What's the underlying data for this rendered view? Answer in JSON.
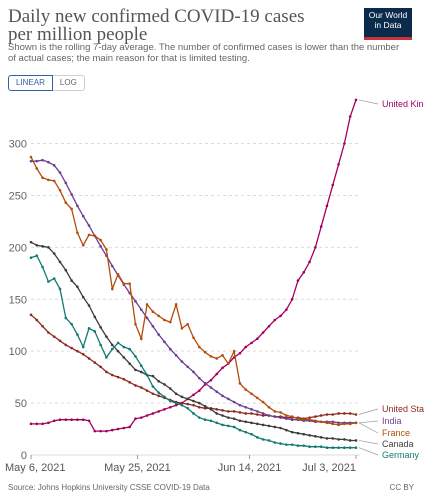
{
  "header": {
    "title": "Daily new confirmed COVID-19 cases per million people",
    "subtitle": "Shown is the rolling 7-day average. The number of confirmed cases is lower than the number of actual cases; the main reason for that is limited testing.",
    "logo_line1": "Our World",
    "logo_line2": "in Data"
  },
  "scale_toggle": {
    "linear": "LINEAR",
    "log": "LOG"
  },
  "footer": {
    "source": "Source: Johns Hopkins University CSSE COVID-19 Data",
    "license": "CC BY"
  },
  "chart_data": {
    "type": "line",
    "title": "Daily new confirmed COVID-19 cases per million people",
    "x_range": [
      "2021-05-06",
      "2021-07-03"
    ],
    "x_tick_labels": [
      "May 6, 2021",
      "May 25, 2021",
      "Jun 14, 2021",
      "Jul 3, 2021"
    ],
    "ylim": [
      0,
      340
    ],
    "y_ticks": [
      0,
      50,
      100,
      150,
      200,
      250,
      300
    ],
    "grid": "horizontal dashed",
    "series": [
      {
        "name": "United Kingdom",
        "color": "#a2005f",
        "values": [
          30,
          30,
          30,
          31,
          33,
          34,
          34,
          34,
          34,
          34,
          33,
          23,
          23,
          23,
          24,
          25,
          26,
          27,
          35,
          36,
          38,
          40,
          42,
          44,
          46,
          48,
          50,
          54,
          58,
          62,
          68,
          72,
          78,
          84,
          88,
          94,
          98,
          104,
          108,
          112,
          118,
          124,
          130,
          134,
          140,
          150,
          168,
          176,
          186,
          200,
          220,
          240,
          260,
          280,
          300,
          326,
          342
        ]
      },
      {
        "name": "United States",
        "color": "#8c2a22",
        "values": [
          135,
          130,
          124,
          118,
          114,
          110,
          106,
          103,
          100,
          97,
          93,
          89,
          85,
          80,
          77,
          75,
          73,
          70,
          67,
          65,
          62,
          59,
          57,
          55,
          53,
          51,
          50,
          49,
          48,
          46,
          45,
          45,
          44,
          43,
          42,
          42,
          41,
          40,
          40,
          39,
          38,
          38,
          37,
          37,
          36,
          36,
          36,
          35,
          36,
          37,
          38,
          39,
          39,
          40,
          40,
          40,
          39
        ]
      },
      {
        "name": "India",
        "color": "#6d3e91",
        "values": [
          283,
          283,
          284,
          282,
          279,
          272,
          262,
          251,
          240,
          230,
          221,
          211,
          201,
          192,
          182,
          173,
          164,
          156,
          148,
          140,
          132,
          124,
          116,
          109,
          102,
          96,
          90,
          85,
          80,
          74,
          69,
          65,
          61,
          57,
          54,
          51,
          48,
          46,
          44,
          42,
          40,
          38,
          37,
          36,
          35,
          34,
          34,
          33,
          33,
          32,
          32,
          32,
          32,
          31,
          31,
          31,
          31
        ]
      },
      {
        "name": "France",
        "color": "#b24d0c",
        "values": [
          287,
          276,
          267,
          265,
          264,
          255,
          243,
          237,
          214,
          202,
          212,
          211,
          207,
          198,
          160,
          174,
          165,
          165,
          126,
          112,
          145,
          138,
          134,
          130,
          128,
          145,
          122,
          126,
          113,
          104,
          99,
          95,
          93,
          96,
          88,
          100,
          69,
          63,
          59,
          55,
          51,
          46,
          42,
          41,
          38,
          37,
          35,
          34,
          34,
          33,
          32,
          31,
          30,
          29,
          30,
          30,
          31
        ]
      },
      {
        "name": "Canada",
        "color": "#3c3c3c",
        "values": [
          205,
          202,
          201,
          200,
          194,
          186,
          178,
          168,
          162,
          152,
          144,
          133,
          123,
          114,
          106,
          100,
          94,
          88,
          82,
          80,
          77,
          76,
          71,
          68,
          64,
          59,
          56,
          54,
          52,
          50,
          47,
          44,
          40,
          38,
          36,
          35,
          33,
          32,
          31,
          30,
          29,
          28,
          27,
          26,
          24,
          22,
          21,
          20,
          19,
          18,
          17,
          16,
          16,
          15,
          15,
          14,
          14
        ]
      },
      {
        "name": "Germany",
        "color": "#127a73",
        "values": [
          190,
          192,
          181,
          167,
          170,
          160,
          132,
          126,
          116,
          104,
          122,
          119,
          106,
          94,
          102,
          108,
          104,
          102,
          95,
          86,
          77,
          66,
          60,
          56,
          52,
          50,
          48,
          45,
          40,
          36,
          34,
          33,
          31,
          29,
          28,
          27,
          24,
          22,
          20,
          17,
          15,
          14,
          12,
          11,
          10,
          10,
          9,
          9,
          8,
          8,
          8,
          7,
          7,
          7,
          7,
          7,
          7
        ]
      }
    ]
  }
}
